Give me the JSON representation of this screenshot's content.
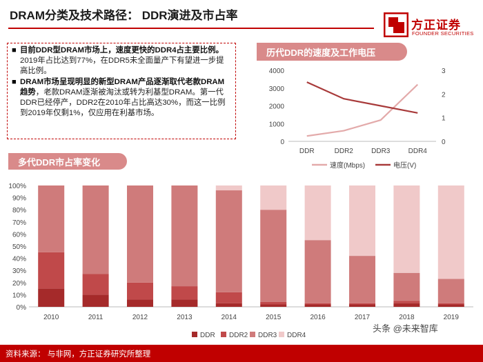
{
  "header": {
    "title": "DRAM分类及技术路径：  DDR演进及市占率",
    "logo_cn": "方正证券",
    "logo_en": "FOUNDER SECURITIES",
    "brand_color": "#c00000"
  },
  "summary": {
    "bullets": [
      {
        "bold": "目前DDR型DRAM市场上，速度更快的DDR4占主要比例。",
        "text": "2019年占比达到77%，在DDR5未全面量产下有望进一步提高比例。"
      },
      {
        "bold": "DRAM市场呈现明显的新型DRAM产品逐渐取代老款DRAM趋势",
        "text": "，老款DRAM逐渐被淘汰或转为利基型DRAM。第一代DDR已经停产，DDR2在2010年占比高达30%，而这一比例到2019年仅剩1%，仅应用在利基市场。"
      }
    ]
  },
  "chart_data": [
    {
      "type": "line",
      "title": "历代DDR的速度及工作电压",
      "categories": [
        "DDR",
        "DDR2",
        "DDR3",
        "DDR4"
      ],
      "ylim_left": [
        0,
        4000
      ],
      "yticks_left": [
        0,
        1000,
        2000,
        3000,
        4000
      ],
      "ylim_right": [
        0,
        3
      ],
      "yticks_right": [
        0,
        1,
        2,
        3
      ],
      "legend_position": "bottom",
      "series": [
        {
          "name": "速度(Mbps)",
          "axis": "left",
          "color": "#e3aaaa",
          "values": [
            300,
            600,
            1200,
            3200
          ]
        },
        {
          "name": "电压(V)",
          "axis": "right",
          "color": "#a83a3a",
          "values": [
            2.5,
            1.8,
            1.5,
            1.2
          ]
        }
      ]
    },
    {
      "type": "bar",
      "stacked": true,
      "title": "多代DDR市占率变化",
      "categories": [
        "2010",
        "2011",
        "2012",
        "2013",
        "2014",
        "2015",
        "2016",
        "2017",
        "2018",
        "2019"
      ],
      "ylim": [
        0,
        100
      ],
      "yticks": [
        "0%",
        "10%",
        "20%",
        "30%",
        "40%",
        "50%",
        "60%",
        "70%",
        "80%",
        "90%",
        "100%"
      ],
      "legend_position": "bottom",
      "grid": false,
      "series": [
        {
          "name": "DDR",
          "color": "#a52a2a",
          "values": [
            15,
            10,
            6,
            6,
            3,
            2,
            2,
            2,
            3,
            2
          ]
        },
        {
          "name": "DDR2",
          "color": "#c0494a",
          "values": [
            30,
            17,
            14,
            11,
            9,
            2,
            1,
            1,
            2,
            1
          ]
        },
        {
          "name": "DDR3",
          "color": "#cf7b7b",
          "values": [
            55,
            73,
            80,
            83,
            84,
            76,
            52,
            39,
            23,
            20
          ]
        },
        {
          "name": "DDR4",
          "color": "#f0c9c9",
          "values": [
            0,
            0,
            0,
            0,
            4,
            20,
            45,
            58,
            72,
            77
          ]
        }
      ]
    }
  ],
  "footer": {
    "source": "资料来源：  与非网，方正证券研究所整理",
    "watermark": "头条 @未来智库"
  }
}
